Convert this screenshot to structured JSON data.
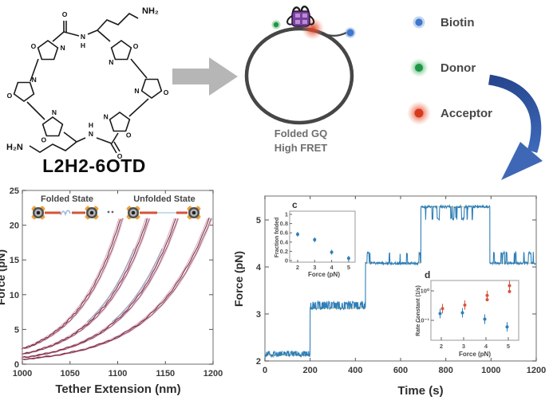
{
  "molecule": {
    "name": "L2H2-6OTD",
    "amine_top": "NH₂",
    "amine_bottom": "H₂N",
    "atom_o": "O",
    "atom_n": "N",
    "atom_h": "H"
  },
  "scheme": {
    "caption_line1": "Folded GQ",
    "caption_line2": "High FRET"
  },
  "legend": {
    "items": [
      {
        "name": "biotin",
        "label": "Biotin",
        "color": "#3f77cc"
      },
      {
        "name": "donor",
        "label": "Donor",
        "color": "#27a04a"
      },
      {
        "name": "acceptor",
        "label": "Acceptor",
        "color": "#e03c20"
      }
    ]
  },
  "chart_data": [
    {
      "type": "line",
      "title": "",
      "xlabel": "Tether Extension (nm)",
      "ylabel": "Force (pN)",
      "xlim": [
        1000,
        1200
      ],
      "ylim": [
        0,
        25
      ],
      "xticks": [
        1000,
        1050,
        1100,
        1150,
        1200
      ],
      "yticks": [
        0,
        5,
        10,
        15,
        20,
        25
      ],
      "annotations": [
        "Folded State",
        "Unfolded State"
      ],
      "colors": {
        "data": "#7b2d44",
        "fit": "#dcb0c4",
        "unfold_segment": "#8fa6c6"
      },
      "series": [
        {
          "name": "pull-1",
          "x_start": 1000,
          "f_start": 2.2,
          "x_end": 1103,
          "f_end": 21
        },
        {
          "name": "pull-2",
          "x_start": 1000,
          "f_start": 1.45,
          "x_end": 1131,
          "f_end": 21
        },
        {
          "name": "pull-3",
          "x_start": 1000,
          "f_start": 0.95,
          "x_end": 1161,
          "f_end": 21
        },
        {
          "name": "pull-4",
          "x_start": 1000,
          "f_start": 0.7,
          "x_end": 1196,
          "f_end": 21
        }
      ]
    },
    {
      "type": "line",
      "title": "",
      "xlabel": "Time (s)",
      "ylabel": "Force (pN)",
      "xlim": [
        0,
        1200
      ],
      "ylim": [
        2,
        5.5
      ],
      "xticks": [
        0,
        200,
        400,
        600,
        800,
        1000,
        1200
      ],
      "yticks": [
        2,
        3,
        4,
        5
      ],
      "trace_color": "#2f7fb8",
      "setpoint_color": "#ddcf8f",
      "segments": [
        {
          "t_start": 0,
          "t_end": 200,
          "force": 2.12,
          "hop_amplitude": 0.07
        },
        {
          "t_start": 200,
          "t_end": 445,
          "force": 3.12,
          "hop_amplitude": 0.12
        },
        {
          "t_start": 445,
          "t_end": 690,
          "force": 4.08,
          "hop_amplitude": 0.22
        },
        {
          "t_start": 690,
          "t_end": 995,
          "force": 5.28,
          "hop_amplitude": -0.26
        },
        {
          "t_start": 995,
          "t_end": 1200,
          "force": 4.08,
          "hop_amplitude": 0.22
        }
      ],
      "insets": [
        {
          "label": "c",
          "xlabel": "Force (pN)",
          "ylabel": "Fraction folded",
          "xticks": [
            2,
            3,
            4,
            5
          ],
          "yticks": [
            0,
            0.2,
            0.4,
            0.6,
            0.8,
            1
          ],
          "points": {
            "x": [
              2,
              3,
              4,
              5
            ],
            "y": [
              0.57,
              0.45,
              0.18,
              0.05
            ]
          },
          "color": "#2f7fb8"
        },
        {
          "label": "d",
          "xlabel": "Force (pN)",
          "ylabel": "Rate Constant (1/s)",
          "xticks": [
            2,
            3,
            4,
            5
          ],
          "ytick_labels": [
            "10⁰",
            "10⁻¹"
          ],
          "ytick_values": [
            1,
            0.1
          ],
          "series": [
            {
              "name": "unfolding-rate",
              "color": "#d9553d",
              "x": [
                2,
                3,
                4,
                5
              ],
              "y": [
                0.25,
                0.33,
                0.7,
                1.5
              ],
              "extra": {
                "x": [
                  4,
                  5
                ],
                "y": [
                  0.5,
                  0.95
                ]
              }
            },
            {
              "name": "folding-rate",
              "color": "#2f7fb8",
              "x": [
                2,
                3,
                4,
                5
              ],
              "y": [
                0.17,
                0.18,
                0.11,
                0.06
              ]
            }
          ]
        }
      ]
    }
  ]
}
